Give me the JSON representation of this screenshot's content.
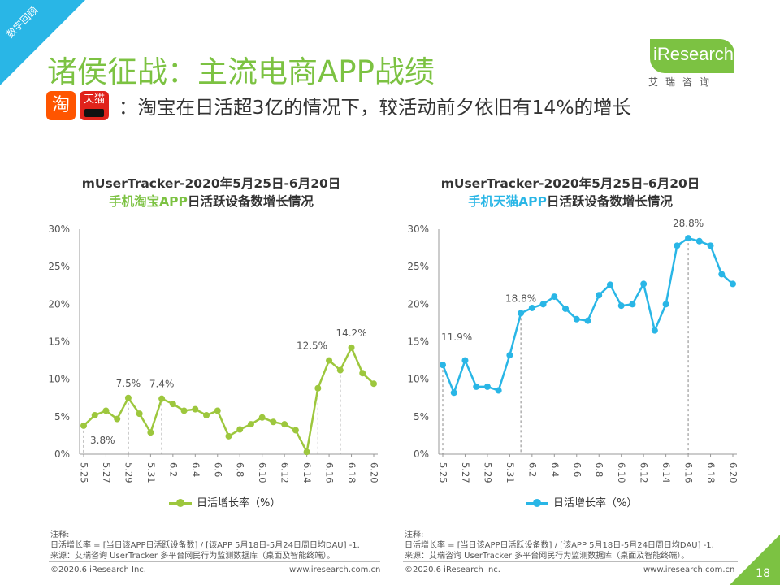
{
  "corner_tag": "数字回顾",
  "title": "诸侯征战：主流电商APP战绩",
  "logo": {
    "text": "iResearch",
    "sub": "艾瑞咨询"
  },
  "icons": {
    "taobao": "淘",
    "tmall": "天猫",
    "taobao_icon": "taobao-app-icon",
    "tmall_icon": "tmall-app-icon"
  },
  "subtitle": "：淘宝在日活超3亿的情况下，较活动前夕依旧有14%的增长",
  "colors": {
    "green": "#7cc242",
    "blue": "#29b6e6"
  },
  "chart_data": [
    {
      "type": "line",
      "title": "mUserTracker-2020年5月25日-6月20日",
      "subtitle_app": "手机淘宝APP",
      "subtitle_rest": "日活跃设备数增长情况",
      "x": [
        "5.25",
        "5.26",
        "5.27",
        "5.28",
        "5.29",
        "5.30",
        "5.31",
        "6.1",
        "6.2",
        "6.3",
        "6.4",
        "6.5",
        "6.6",
        "6.7",
        "6.8",
        "6.9",
        "6.10",
        "6.11",
        "6.12",
        "6.13",
        "6.14",
        "6.15",
        "6.16",
        "6.17",
        "6.18",
        "6.19",
        "6.20"
      ],
      "x_tick_labels": [
        "5.25",
        "5.27",
        "5.29",
        "5.31",
        "6.2",
        "6.4",
        "6.6",
        "6.8",
        "6.10",
        "6.12",
        "6.14",
        "6.16",
        "6.18",
        "6.20"
      ],
      "series": [
        {
          "name": "日活增长率（%）",
          "color": "#9dc73d",
          "values": [
            3.8,
            5.2,
            5.8,
            4.7,
            7.5,
            5.4,
            2.9,
            7.4,
            6.7,
            5.8,
            6.0,
            5.2,
            5.8,
            2.4,
            3.3,
            4.0,
            4.9,
            4.3,
            4.0,
            3.2,
            0.3,
            8.8,
            12.5,
            11.2,
            14.2,
            10.8,
            9.4
          ]
        }
      ],
      "data_labels": [
        {
          "x": "5.25",
          "text": "3.8%"
        },
        {
          "x": "5.29",
          "text": "7.5%"
        },
        {
          "x": "6.1",
          "text": "7.4%"
        },
        {
          "x": "6.16",
          "text": "12.5%"
        },
        {
          "x": "6.18",
          "text": "14.2%"
        }
      ],
      "dashed_markers": [
        "5.25",
        "5.29",
        "6.1",
        "6.15",
        "6.17"
      ],
      "ylim": [
        0,
        30
      ],
      "y_ticks": [
        "0%",
        "5%",
        "10%",
        "15%",
        "20%",
        "25%",
        "30%"
      ],
      "legend": "日活增长率（%）",
      "notes": [
        "注释:",
        "日活增长率 = [当日该APP日活跃设备数] / [该APP 5月18日-5月24日周日均DAU] -1.",
        "来源：艾瑞咨询 UserTracker 多平台网民行为监测数据库（桌面及智能终端）。"
      ]
    },
    {
      "type": "line",
      "title": "mUserTracker-2020年5月25日-6月20日",
      "subtitle_app": "手机天猫APP",
      "subtitle_rest": "日活跃设备数增长情况",
      "x": [
        "5.25",
        "5.26",
        "5.27",
        "5.28",
        "5.29",
        "5.30",
        "5.31",
        "6.1",
        "6.2",
        "6.3",
        "6.4",
        "6.5",
        "6.6",
        "6.7",
        "6.8",
        "6.9",
        "6.10",
        "6.11",
        "6.12",
        "6.13",
        "6.14",
        "6.15",
        "6.16",
        "6.17",
        "6.18",
        "6.19",
        "6.20"
      ],
      "x_tick_labels": [
        "5.25",
        "5.27",
        "5.29",
        "5.31",
        "6.2",
        "6.4",
        "6.6",
        "6.8",
        "6.10",
        "6.12",
        "6.14",
        "6.16",
        "6.18",
        "6.20"
      ],
      "series": [
        {
          "name": "日活增长率（%）",
          "color": "#29b6e6",
          "values": [
            11.9,
            8.2,
            12.5,
            9.0,
            9.0,
            8.5,
            13.2,
            18.8,
            19.5,
            20.0,
            21.0,
            19.4,
            18.0,
            17.8,
            21.2,
            22.6,
            19.8,
            20.0,
            22.7,
            16.5,
            20.0,
            27.8,
            28.8,
            28.4,
            27.8,
            24.0,
            22.7
          ]
        }
      ],
      "data_labels": [
        {
          "x": "5.25",
          "text": "11.9%"
        },
        {
          "x": "6.1",
          "text": "18.8%"
        },
        {
          "x": "6.16",
          "text": "28.8%"
        }
      ],
      "dashed_markers": [
        "5.25",
        "6.1",
        "6.16"
      ],
      "ylim": [
        0,
        30
      ],
      "y_ticks": [
        "0%",
        "5%",
        "10%",
        "15%",
        "20%",
        "25%",
        "30%"
      ],
      "legend": "日活增长率（%）",
      "notes": [
        "注释:",
        "日活增长率 = [当日该APP日活跃设备数] / [该APP 5月18日-5月24日周日均DAU] -1.",
        "来源：艾瑞咨询 UserTracker 多平台网民行为监测数据库（桌面及智能终端）。"
      ]
    }
  ],
  "footer": {
    "copyright": "©2020.6 iResearch Inc.",
    "url": "www.iresearch.com.cn",
    "page": "18"
  }
}
